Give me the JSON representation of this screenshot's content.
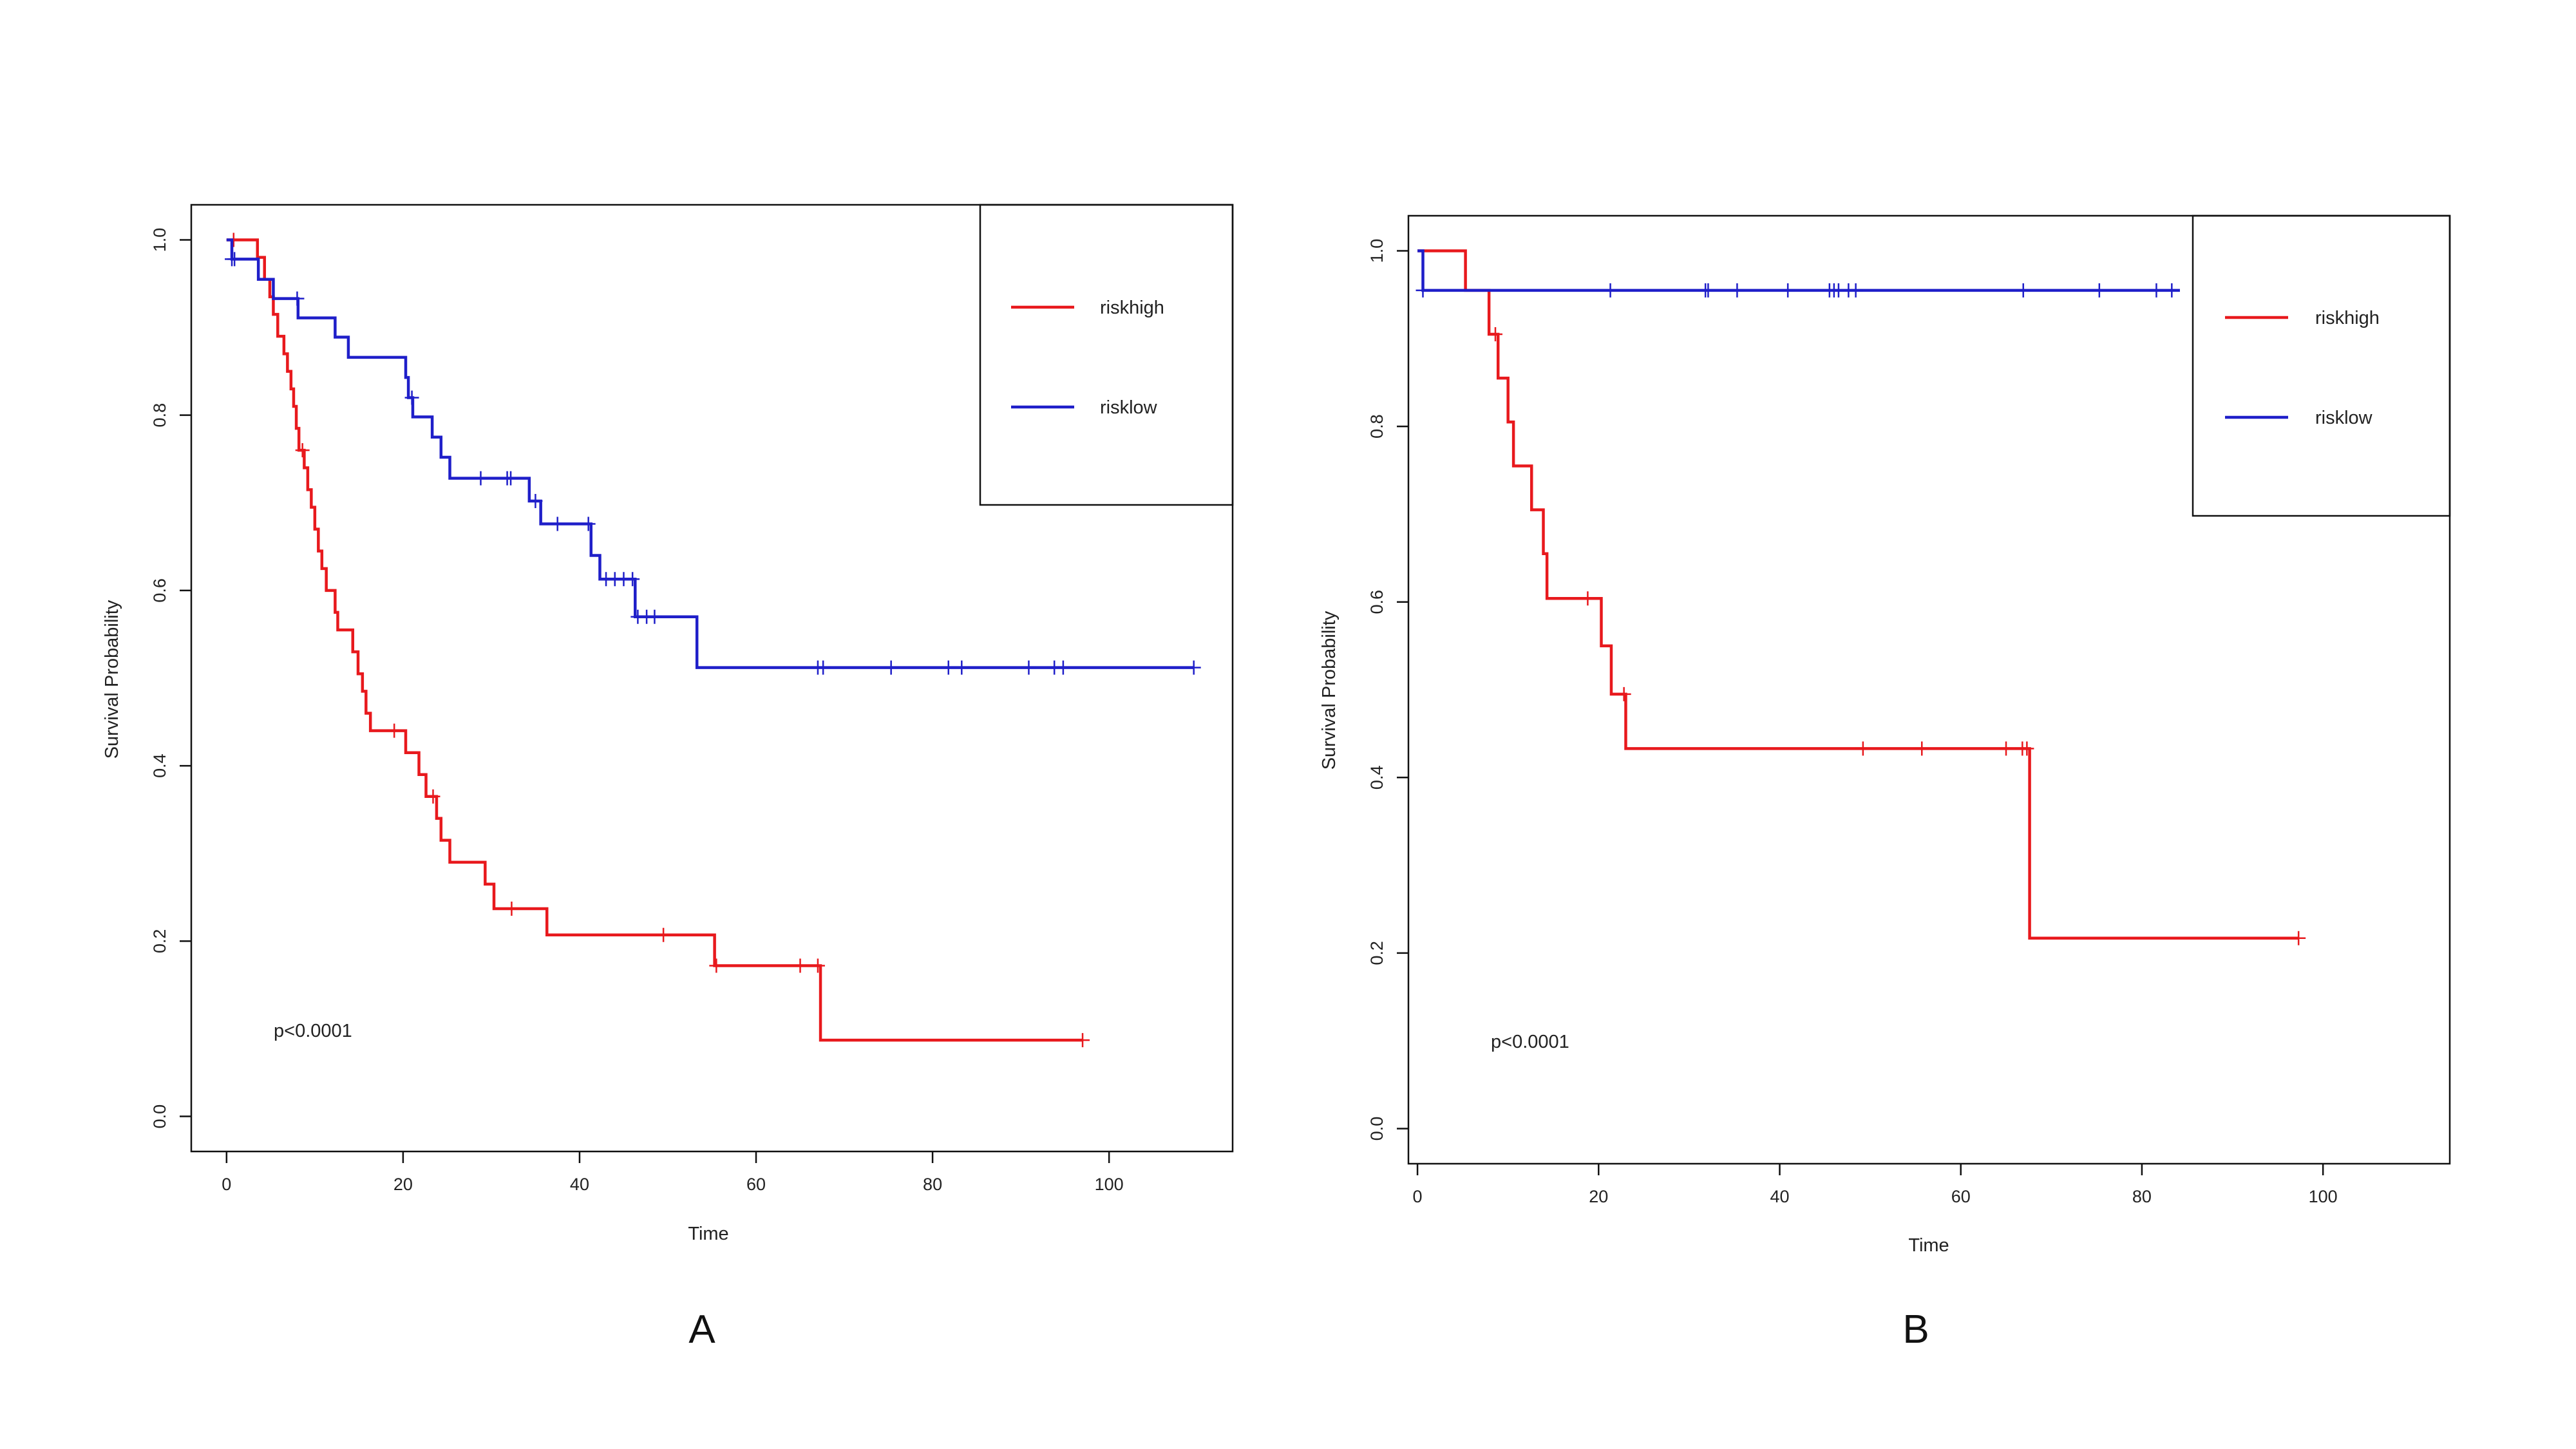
{
  "chart_data": [
    {
      "type": "line",
      "subtype": "kaplan-meier",
      "panel_label": "A",
      "xlabel": "Time",
      "ylabel": "Survival Probability",
      "xlim": [
        -4,
        114
      ],
      "ylim": [
        -0.04,
        1.04
      ],
      "xticks": [
        0,
        20,
        40,
        60,
        80,
        100
      ],
      "yticks": [
        0.0,
        0.2,
        0.4,
        0.6,
        0.8,
        1.0
      ],
      "xtick_labels": [
        "0",
        "20",
        "40",
        "60",
        "80",
        "100"
      ],
      "ytick_labels": [
        "0.0",
        "0.2",
        "0.4",
        "0.6",
        "0.8",
        "1.0"
      ],
      "annotation": "p<0.0001",
      "annotation_pos": [
        5,
        0.1
      ],
      "legend_position": "top-right",
      "series": [
        {
          "name": "riskhigh",
          "color": "#e8191d",
          "start_y": 1.0,
          "steps": [
            [
              3.5,
              0.98
            ],
            [
              4.3,
              0.955
            ],
            [
              4.9,
              0.935
            ],
            [
              5.3,
              0.915
            ],
            [
              5.8,
              0.89
            ],
            [
              6.5,
              0.87
            ],
            [
              6.9,
              0.85
            ],
            [
              7.3,
              0.83
            ],
            [
              7.6,
              0.81
            ],
            [
              7.9,
              0.785
            ],
            [
              8.2,
              0.76
            ],
            [
              8.8,
              0.74
            ],
            [
              9.2,
              0.715
            ],
            [
              9.6,
              0.695
            ],
            [
              10.0,
              0.67
            ],
            [
              10.4,
              0.645
            ],
            [
              10.8,
              0.625
            ],
            [
              11.3,
              0.6
            ],
            [
              12.3,
              0.575
            ],
            [
              12.6,
              0.555
            ],
            [
              14.3,
              0.53
            ],
            [
              14.9,
              0.505
            ],
            [
              15.4,
              0.485
            ],
            [
              15.8,
              0.46
            ],
            [
              16.3,
              0.44
            ],
            [
              20.3,
              0.415
            ],
            [
              21.8,
              0.39
            ],
            [
              22.6,
              0.365
            ],
            [
              23.8,
              0.34
            ],
            [
              24.3,
              0.315
            ],
            [
              25.3,
              0.29
            ],
            [
              29.3,
              0.265
            ],
            [
              30.3,
              0.237
            ],
            [
              36.3,
              0.207
            ],
            [
              55.3,
              0.172
            ],
            [
              67.3,
              0.087
            ]
          ],
          "end_x": 97,
          "censor_x": [
            0.8,
            8.6,
            19.0,
            23.4,
            32.3,
            49.5,
            55.5,
            65.0,
            67.0,
            97.0
          ]
        },
        {
          "name": "risklow",
          "color": "#1f1fc9",
          "start_y": 1.0,
          "steps": [
            [
              0.6,
              0.978
            ],
            [
              3.6,
              0.955
            ],
            [
              5.3,
              0.933
            ],
            [
              8.1,
              0.911
            ],
            [
              12.3,
              0.889
            ],
            [
              13.8,
              0.866
            ],
            [
              20.3,
              0.843
            ],
            [
              20.6,
              0.82
            ],
            [
              21.1,
              0.798
            ],
            [
              23.3,
              0.775
            ],
            [
              24.3,
              0.752
            ],
            [
              25.3,
              0.728
            ],
            [
              34.3,
              0.702
            ],
            [
              35.6,
              0.676
            ],
            [
              41.3,
              0.64
            ],
            [
              42.3,
              0.613
            ],
            [
              46.3,
              0.57
            ],
            [
              53.3,
              0.512
            ]
          ],
          "end_x": 109.6,
          "censor_x": [
            0.6,
            0.9,
            8.0,
            21.0,
            28.8,
            31.8,
            32.2,
            35.0,
            37.5,
            41.0,
            43.0,
            44.0,
            45.0,
            46.0,
            46.6,
            47.6,
            48.5,
            67.0,
            67.6,
            75.3,
            81.8,
            83.3,
            90.9,
            93.8,
            94.8,
            109.6
          ]
        }
      ]
    },
    {
      "type": "line",
      "subtype": "kaplan-meier",
      "panel_label": "B",
      "xlabel": "Time",
      "ylabel": "Survival Probability",
      "xlim": [
        -1,
        114
      ],
      "ylim": [
        -0.04,
        1.04
      ],
      "xticks": [
        0,
        20,
        40,
        60,
        80,
        100
      ],
      "yticks": [
        0.0,
        0.2,
        0.4,
        0.6,
        0.8,
        1.0
      ],
      "xtick_labels": [
        "0",
        "20",
        "40",
        "60",
        "80",
        "100"
      ],
      "ytick_labels": [
        "0.0",
        "0.2",
        "0.4",
        "0.6",
        "0.8",
        "1.0"
      ],
      "annotation": "p<0.0001",
      "annotation_pos": [
        5,
        0.1
      ],
      "legend_position": "top-right",
      "series": [
        {
          "name": "riskhigh",
          "color": "#e8191d",
          "start_y": 1.0,
          "steps": [
            [
              5.3,
              0.955
            ],
            [
              7.9,
              0.905
            ],
            [
              8.9,
              0.855
            ],
            [
              10.0,
              0.805
            ],
            [
              10.6,
              0.755
            ],
            [
              12.6,
              0.705
            ],
            [
              13.9,
              0.655
            ],
            [
              14.3,
              0.604
            ],
            [
              20.3,
              0.55
            ],
            [
              21.4,
              0.495
            ],
            [
              23.0,
              0.433
            ],
            [
              67.6,
              0.217
            ]
          ],
          "end_x": 97.3,
          "censor_x": [
            8.6,
            18.8,
            22.8,
            49.2,
            55.7,
            65.0,
            66.8,
            67.3,
            97.3
          ]
        },
        {
          "name": "risklow",
          "color": "#1f1fc9",
          "start_y": 1.0,
          "steps": [
            [
              0.6,
              0.955
            ]
          ],
          "end_x": 84.2,
          "censor_x": [
            0.6,
            21.3,
            31.8,
            32.1,
            35.3,
            40.9,
            45.5,
            46.0,
            46.5,
            47.6,
            48.4,
            66.9,
            75.3,
            81.6,
            83.3
          ]
        }
      ]
    }
  ]
}
